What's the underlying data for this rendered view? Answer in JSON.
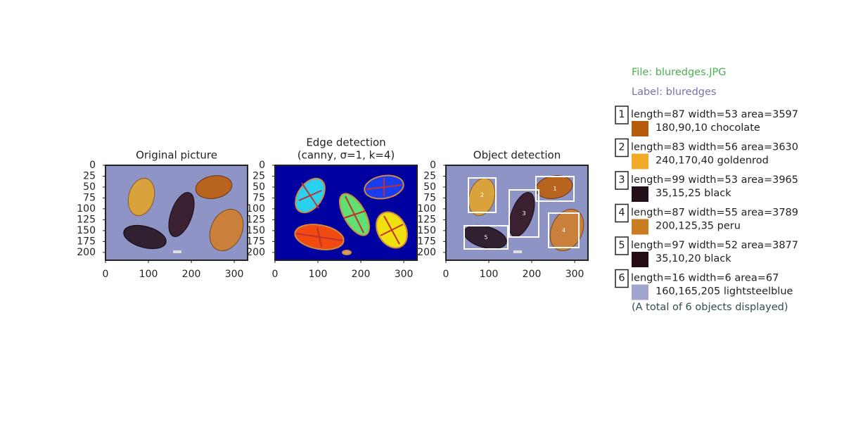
{
  "axes": {
    "xlim": [
      0,
      331
    ],
    "ylim": [
      218,
      0
    ],
    "xticks": [
      0,
      100,
      200,
      300
    ],
    "yticks": [
      0,
      25,
      50,
      75,
      100,
      125,
      150,
      175,
      200
    ]
  },
  "panels": [
    {
      "title": "Original picture"
    },
    {
      "title": "Edge detection",
      "subtitle": "(canny, σ=1, k=4)"
    },
    {
      "title": "Object detection"
    }
  ],
  "file": "File: bluredges.JPG",
  "label": "Label: bluredges",
  "objects": [
    {
      "id": "1",
      "measures": "length=87 width=53 area=3597",
      "color_text": "180,90,10 chocolate",
      "color": "#b45a0a"
    },
    {
      "id": "2",
      "measures": "length=83 width=56 area=3630",
      "color_text": "240,170,40 goldenrod",
      "color": "#f0aa28"
    },
    {
      "id": "3",
      "measures": "length=99 width=53 area=3965",
      "color_text": "35,15,25 black",
      "color": "#230f19"
    },
    {
      "id": "4",
      "measures": "length=87 width=55 area=3789",
      "color_text": "200,125,35 peru",
      "color": "#c87d23"
    },
    {
      "id": "5",
      "measures": "length=97 width=52 area=3877",
      "color_text": "35,10,20 black",
      "color": "#230a14"
    },
    {
      "id": "6",
      "measures": "length=16 width=6 area=67",
      "color_text": "160,165,205 lightsteelblue",
      "color": "#a0a5cd"
    }
  ],
  "total": "(A total of 6 objects displayed)"
}
